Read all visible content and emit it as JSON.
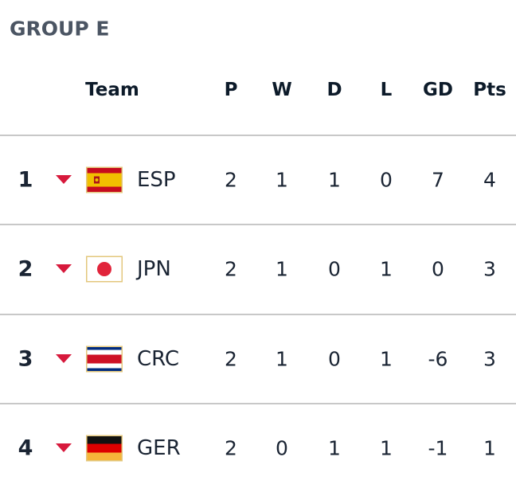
{
  "header": {
    "title": "GROUP E"
  },
  "table": {
    "columns": [
      "Team",
      "P",
      "W",
      "D",
      "L",
      "GD",
      "Pts"
    ],
    "rows": [
      {
        "rank": 1,
        "team": "ESP",
        "stats": [
          2,
          1,
          1,
          0,
          7,
          4
        ]
      },
      {
        "rank": 2,
        "team": "JPN",
        "stats": [
          2,
          1,
          0,
          1,
          0,
          3
        ]
      },
      {
        "rank": 3,
        "team": "CRC",
        "stats": [
          2,
          1,
          0,
          1,
          -6,
          3
        ]
      },
      {
        "rank": 4,
        "team": "GER",
        "stats": [
          2,
          0,
          1,
          1,
          -1,
          1
        ]
      }
    ]
  }
}
